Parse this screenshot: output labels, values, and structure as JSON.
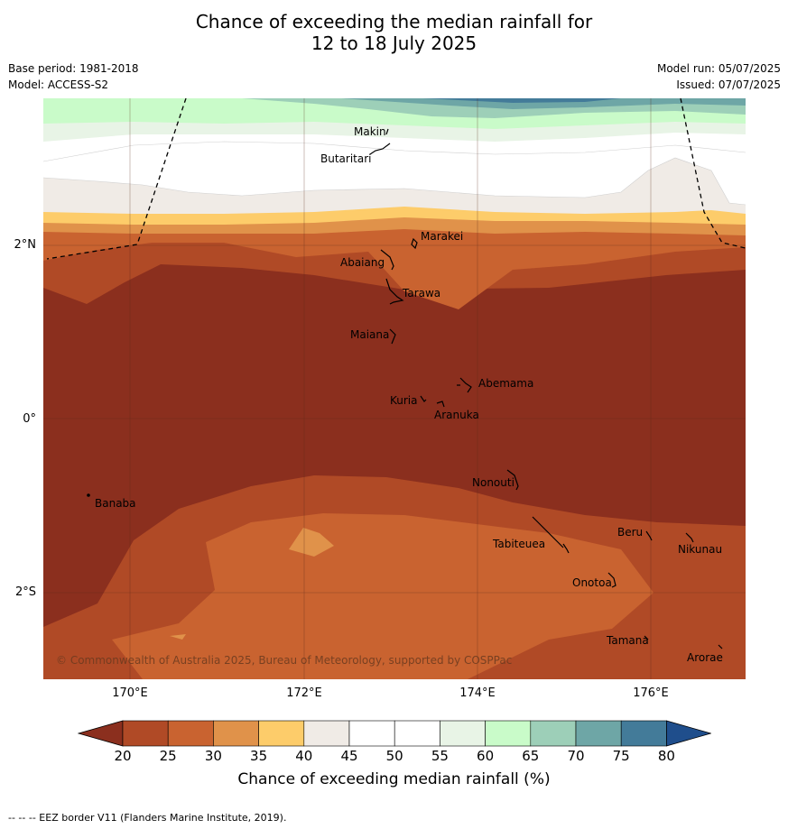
{
  "title_line1": "Chance of exceeding the median rainfall for",
  "title_line2": "12 to 18 July 2025",
  "base_period": "Base period: 1981-2018",
  "model": "Model: ACCESS-S2",
  "model_run": "Model run: 05/07/2025",
  "issued": "Issued: 07/07/2025",
  "lat_labels": [
    "2°N",
    "0°",
    "2°S"
  ],
  "lon_labels": [
    "170°E",
    "172°E",
    "174°E",
    "176°E"
  ],
  "places": [
    "Makin",
    "Butaritari",
    "Marakei",
    "Abaiang",
    "Tarawa",
    "Maiana",
    "Abemama",
    "Kuria",
    "Aranuka",
    "Nonouti",
    "Banaba",
    "Beru",
    "Tabiteuea",
    "Nikunau",
    "Onotoa",
    "Tamana",
    "Arorae"
  ],
  "copyright": "© Commonwealth of Australia 2025, Bureau of Meteorology, supported by COSPPac",
  "colorbar": {
    "ticks": [
      "20",
      "25",
      "30",
      "35",
      "40",
      "45",
      "50",
      "55",
      "60",
      "65",
      "70",
      "75",
      "80"
    ],
    "colors": [
      "#8b2f1e",
      "#b04a26",
      "#c96330",
      "#e0924a",
      "#fdcc6a",
      "#f0ebe6",
      "#ffffff",
      "#ffffff",
      "#e8f4e6",
      "#c9fbc9",
      "#9dcfb8",
      "#6ea6a6",
      "#437b99",
      "#1f4e8c"
    ],
    "label": "Chance of exceeding median rainfall (%)"
  },
  "footnote": "--  --  -- EEZ border V11 (Flanders Marine Institute, 2019)."
}
